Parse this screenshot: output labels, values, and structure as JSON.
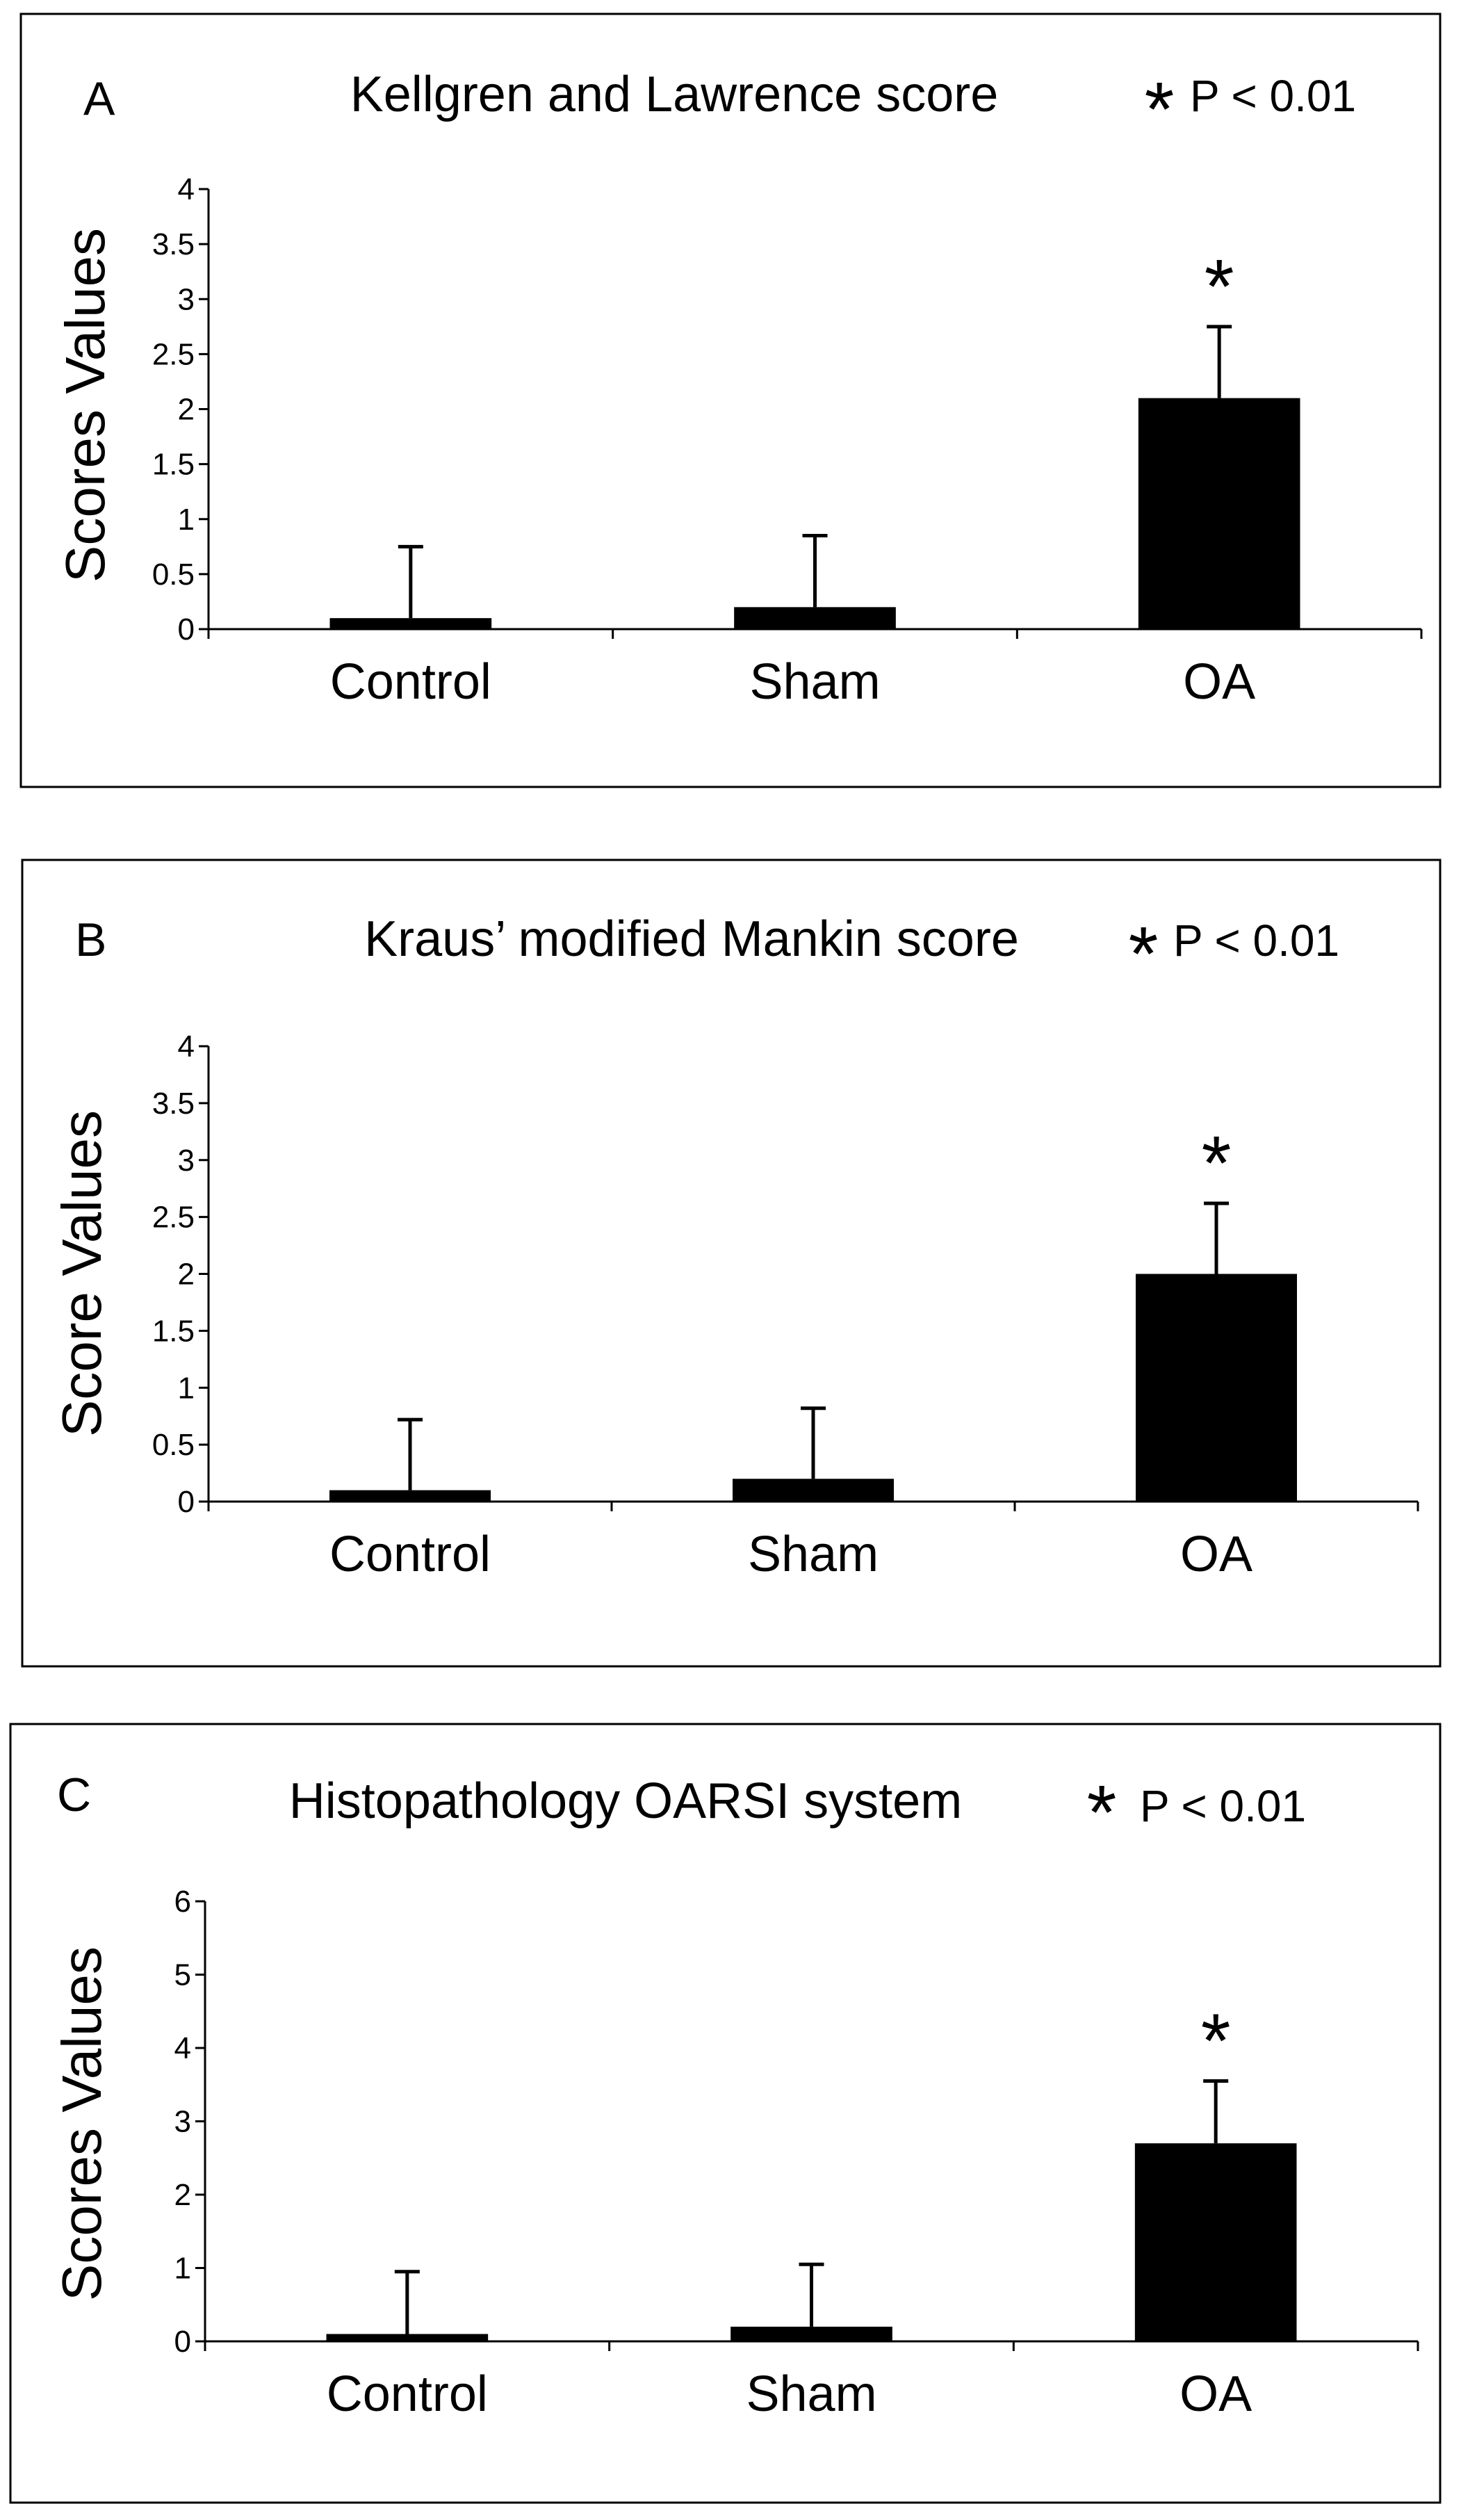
{
  "figure": {
    "sig_marker": "*"
  },
  "chart_data": [
    {
      "type": "bar",
      "panel_letter": "A",
      "title": "Kellgren and Lawrence score",
      "p_value_text": "P < 0.01",
      "xlabel": "",
      "ylabel": "Scores Values",
      "categories": [
        "Control",
        "Sham",
        "OA"
      ],
      "values": [
        0.1,
        0.2,
        2.1
      ],
      "error_upper": [
        0.65,
        0.65,
        0.65
      ],
      "significant": [
        false,
        false,
        true
      ],
      "ylim": [
        0,
        4
      ],
      "yticks": [
        0,
        0.5,
        1,
        1.5,
        2,
        2.5,
        3,
        3.5,
        4
      ],
      "ytick_labels": [
        "0",
        "0.5",
        "1",
        "1.5",
        "2",
        "2.5",
        "3",
        "3.5",
        "4"
      ],
      "bar_color": "#000000"
    },
    {
      "type": "bar",
      "panel_letter": "B",
      "title": "Kraus’ modified Mankin score",
      "p_value_text": "P < 0.01",
      "xlabel": "",
      "ylabel": "Score Values",
      "categories": [
        "Control",
        "Sham",
        "OA"
      ],
      "values": [
        0.1,
        0.2,
        2.0
      ],
      "error_upper": [
        0.62,
        0.62,
        0.62
      ],
      "significant": [
        false,
        false,
        true
      ],
      "ylim": [
        0,
        4
      ],
      "yticks": [
        0,
        0.5,
        1,
        1.5,
        2,
        2.5,
        3,
        3.5,
        4
      ],
      "ytick_labels": [
        "0",
        "0.5",
        "1",
        "1.5",
        "2",
        "2.5",
        "3",
        "3.5",
        "4"
      ],
      "bar_color": "#000000"
    },
    {
      "type": "bar",
      "panel_letter": "C",
      "title": "Histopathology OARSI system",
      "p_value_text": "P < 0.01",
      "xlabel": "",
      "ylabel": "Scores Values",
      "categories": [
        "Control",
        "Sham",
        "OA"
      ],
      "values": [
        0.1,
        0.2,
        2.7
      ],
      "error_upper": [
        0.85,
        0.85,
        0.85
      ],
      "significant": [
        false,
        false,
        true
      ],
      "ylim": [
        0,
        6
      ],
      "yticks": [
        0,
        1,
        2,
        3,
        4,
        5,
        6
      ],
      "ytick_labels": [
        "0",
        "1",
        "2",
        "3",
        "4",
        "5",
        "6"
      ],
      "bar_color": "#000000"
    }
  ]
}
